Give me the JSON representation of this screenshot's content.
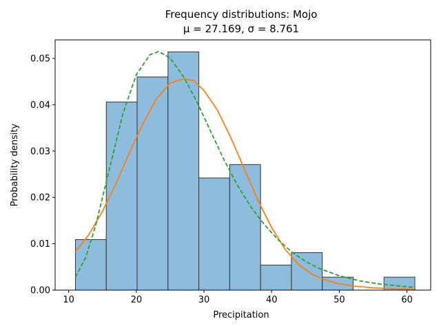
{
  "chart_data": {
    "type": "bar",
    "title": "Frequency distributions: Mojo",
    "subtitle": "μ = 27.169, σ = 8.761",
    "xlabel": "Precipitation",
    "ylabel": "Probability density",
    "xlim": [
      8.0,
      63.5
    ],
    "ylim": [
      0,
      0.054
    ],
    "xticks": [
      10,
      20,
      30,
      40,
      50,
      60
    ],
    "yticks": [
      0.0,
      0.01,
      0.02,
      0.03,
      0.04,
      0.05
    ],
    "ytick_labels": [
      "0.00",
      "0.01",
      "0.02",
      "0.03",
      "0.04",
      "0.05"
    ],
    "grid": false,
    "histogram": {
      "bin_edges": [
        11.0,
        15.56,
        20.12,
        24.68,
        29.24,
        33.8,
        38.36,
        42.92,
        47.48,
        52.04,
        56.6,
        61.16
      ],
      "values": [
        0.0109,
        0.0406,
        0.046,
        0.0514,
        0.0242,
        0.0271,
        0.0054,
        0.0081,
        0.0028,
        0.0,
        0.0028
      ],
      "color": "#8ebcdd",
      "edge_color": "#333333"
    },
    "series": [
      {
        "style": "solid",
        "color": "#ff7f0e",
        "points": [
          [
            11.0,
            0.0083
          ],
          [
            13.0,
            0.012
          ],
          [
            15.0,
            0.017
          ],
          [
            17.0,
            0.023
          ],
          [
            19.0,
            0.0297
          ],
          [
            21.0,
            0.036
          ],
          [
            23.0,
            0.0413
          ],
          [
            25.0,
            0.0447
          ],
          [
            27.0,
            0.0456
          ],
          [
            28.5,
            0.0452
          ],
          [
            30.0,
            0.0431
          ],
          [
            32.0,
            0.0388
          ],
          [
            34.0,
            0.0328
          ],
          [
            36.0,
            0.026
          ],
          [
            38.0,
            0.0193
          ],
          [
            40.0,
            0.0135
          ],
          [
            42.0,
            0.0088
          ],
          [
            44.0,
            0.0055
          ],
          [
            46.0,
            0.0034
          ],
          [
            48.0,
            0.0021
          ],
          [
            50.0,
            0.0014
          ],
          [
            52.0,
            0.0009
          ],
          [
            55.0,
            0.0005
          ],
          [
            58.0,
            0.0003
          ],
          [
            61.0,
            0.0002
          ]
        ]
      },
      {
        "style": "dashed",
        "color": "#2ca02c",
        "points": [
          [
            11.0,
            0.0028
          ],
          [
            12.5,
            0.007
          ],
          [
            14.0,
            0.014
          ],
          [
            16.0,
            0.026
          ],
          [
            18.0,
            0.038
          ],
          [
            20.0,
            0.0465
          ],
          [
            22.0,
            0.0508
          ],
          [
            23.3,
            0.0515
          ],
          [
            25.0,
            0.0501
          ],
          [
            27.0,
            0.046
          ],
          [
            29.0,
            0.0405
          ],
          [
            31.0,
            0.0342
          ],
          [
            33.0,
            0.028
          ],
          [
            35.0,
            0.0225
          ],
          [
            37.0,
            0.0178
          ],
          [
            39.0,
            0.014
          ],
          [
            41.0,
            0.0108
          ],
          [
            43.0,
            0.0082
          ],
          [
            45.0,
            0.0062
          ],
          [
            47.0,
            0.0047
          ],
          [
            50.0,
            0.0031
          ],
          [
            53.0,
            0.002
          ],
          [
            56.0,
            0.0013
          ],
          [
            61.0,
            0.0006
          ]
        ]
      }
    ]
  }
}
